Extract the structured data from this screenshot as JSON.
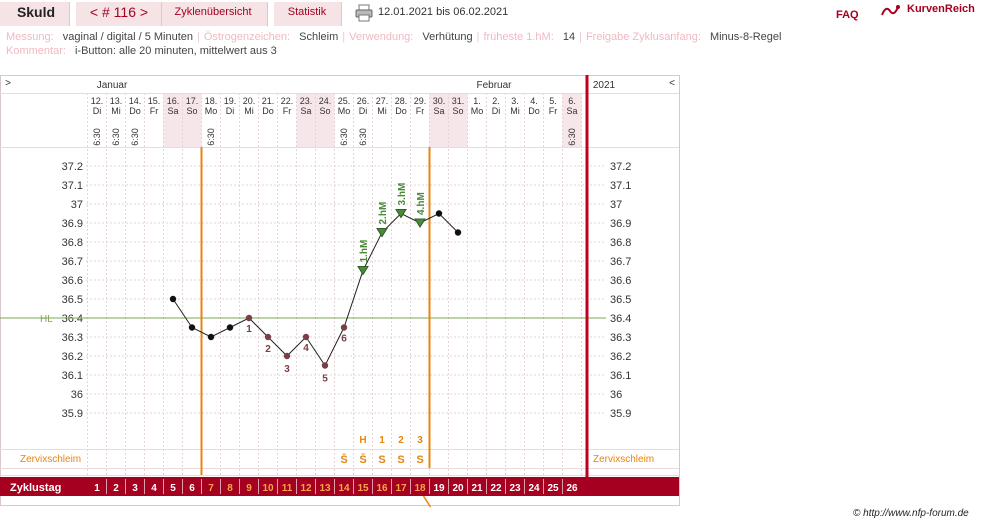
{
  "header": {
    "user": "Skuld",
    "cycle_nav": "< # 116 >",
    "tab_overview": "Zyklenübersicht",
    "tab_stats": "Statistik",
    "print_icon": "printer-icon",
    "date_range": "12.01.2021 bis 06.02.2021",
    "faq": "FAQ",
    "brand": "KurvenReich",
    "brand_icon": "kurvenreich-logo-icon"
  },
  "meta": {
    "messung_label": "Messung:",
    "messung_value": "vaginal / digital / 5 Minuten",
    "oestrogen_label": "Östrogenzeichen:",
    "oestrogen_value": "Schleim",
    "verwendung_label": "Verwendung:",
    "verwendung_value": "Verhütung",
    "hm_label": "früheste 1.hM:",
    "hm_value": "14",
    "freigabe_label": "Freigabe Zyklusanfang:",
    "freigabe_value": "Minus-8-Regel",
    "kommentar_label": "Kommentar:",
    "kommentar_value": "i-Button: alle 20 minuten, mittelwert aus 3"
  },
  "chart_data": {
    "type": "line",
    "title": "",
    "months": [
      "Januar",
      "Februar"
    ],
    "year_label": "2021",
    "nav_left": ">",
    "nav_right": "<",
    "dates": [
      "12.",
      "13.",
      "14.",
      "15.",
      "16.",
      "17.",
      "18.",
      "19.",
      "20.",
      "21.",
      "22.",
      "23.",
      "24.",
      "25.",
      "26.",
      "27.",
      "28.",
      "29.",
      "30.",
      "31.",
      "1.",
      "2.",
      "3.",
      "4.",
      "5.",
      "6."
    ],
    "weekdays": [
      "Di",
      "Mi",
      "Do",
      "Fr",
      "Sa",
      "So",
      "Mo",
      "Di",
      "Mi",
      "Do",
      "Fr",
      "Sa",
      "So",
      "Mo",
      "Di",
      "Mi",
      "Do",
      "Fr",
      "Sa",
      "So",
      "Mo",
      "Di",
      "Mi",
      "Do",
      "Fr",
      "Sa"
    ],
    "weekend_days": [
      5,
      6,
      12,
      13,
      19,
      20,
      26
    ],
    "times": [
      "6:30",
      "6:30",
      "6:30",
      "",
      "",
      "",
      "6:30",
      "",
      "",
      "",
      "",
      "",
      "",
      "6:30",
      "6:30",
      "",
      "",
      "",
      "",
      "",
      "",
      "",
      "",
      "",
      "",
      "6:30"
    ],
    "cycle_days": [
      1,
      2,
      3,
      4,
      5,
      6,
      7,
      8,
      9,
      10,
      11,
      12,
      13,
      14,
      15,
      16,
      17,
      18,
      19,
      20,
      21,
      22,
      23,
      24,
      25,
      26
    ],
    "fertile_days": [
      7,
      18
    ],
    "ylim": [
      35.8,
      37.3
    ],
    "yticks": [
      "37.2",
      "37.1",
      "37",
      "36.9",
      "36.8",
      "36.7",
      "36.6",
      "36.5",
      "36.4",
      "36.3",
      "36.2",
      "36.1",
      "36",
      "35.9"
    ],
    "temperatures": [
      null,
      null,
      null,
      null,
      36.5,
      36.35,
      36.3,
      36.35,
      36.4,
      36.3,
      36.2,
      36.3,
      36.15,
      36.35,
      36.65,
      36.85,
      36.95,
      36.9,
      36.95,
      36.85,
      null,
      null,
      null,
      null,
      null,
      null
    ],
    "low_labels": [
      {
        "day": 9,
        "text": "1"
      },
      {
        "day": 10,
        "text": "2"
      },
      {
        "day": 11,
        "text": "3"
      },
      {
        "day": 12,
        "text": "4"
      },
      {
        "day": 13,
        "text": "5"
      },
      {
        "day": 14,
        "text": "6"
      }
    ],
    "high_labels": [
      {
        "day": 15,
        "text": "1.hM"
      },
      {
        "day": 16,
        "text": "2.hM"
      },
      {
        "day": 17,
        "text": "3.hM"
      },
      {
        "day": 18,
        "text": "4.hM"
      }
    ],
    "hilinie_label": "HL",
    "hilinie_value": 36.4,
    "peak_top": [
      {
        "day": 15,
        "text": "H"
      },
      {
        "day": 16,
        "text": "1"
      },
      {
        "day": 17,
        "text": "2"
      },
      {
        "day": 18,
        "text": "3"
      }
    ],
    "mucus_label": "Zervixschleim",
    "mucus": [
      {
        "day": 14,
        "text": "S̄"
      },
      {
        "day": 15,
        "text": "S̄"
      },
      {
        "day": 16,
        "text": "S"
      },
      {
        "day": 17,
        "text": "S"
      },
      {
        "day": 18,
        "text": "S"
      }
    ],
    "zyklustag_label": "Zyklustag",
    "colors": {
      "accent": "#a60020",
      "fertile": "#e8850f",
      "line": "#222222",
      "hl": "#7aaa55",
      "weekend": "#f6e6e9",
      "low_point": "#7a3e46",
      "high_point": "#4a8a3a"
    }
  },
  "footer": {
    "credit": "© http://www.nfp-forum.de"
  }
}
